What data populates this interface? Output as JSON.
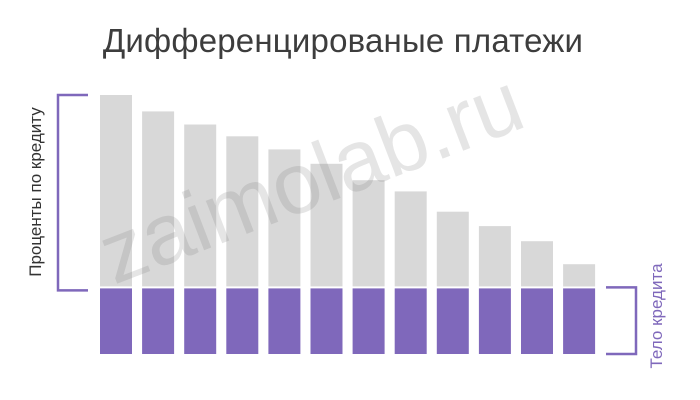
{
  "watermark": "zaimolab.ru",
  "chart_data": {
    "type": "bar",
    "stacked": true,
    "title": "Дифференцированые платежи",
    "categories": [
      "",
      "",
      "",
      "",
      "",
      "",
      "",
      "",
      "",
      "",
      "",
      ""
    ],
    "series": [
      {
        "role": "principal",
        "values": [
          1,
          1,
          1,
          1,
          1,
          1,
          1,
          1,
          1,
          1,
          1,
          1
        ],
        "color": "#7f68bb"
      },
      {
        "role": "interest",
        "values": [
          2.95,
          2.7,
          2.5,
          2.32,
          2.12,
          1.9,
          1.65,
          1.48,
          1.17,
          0.95,
          0.72,
          0.37
        ],
        "color": "#d8d8d8"
      }
    ],
    "ylim": [
      0,
      3.95
    ],
    "grid": false,
    "legend": "none",
    "annotations": {
      "left": "Проценты по кредиту",
      "right": "Тело кредита"
    },
    "bracket_color": "#7f68bb"
  }
}
